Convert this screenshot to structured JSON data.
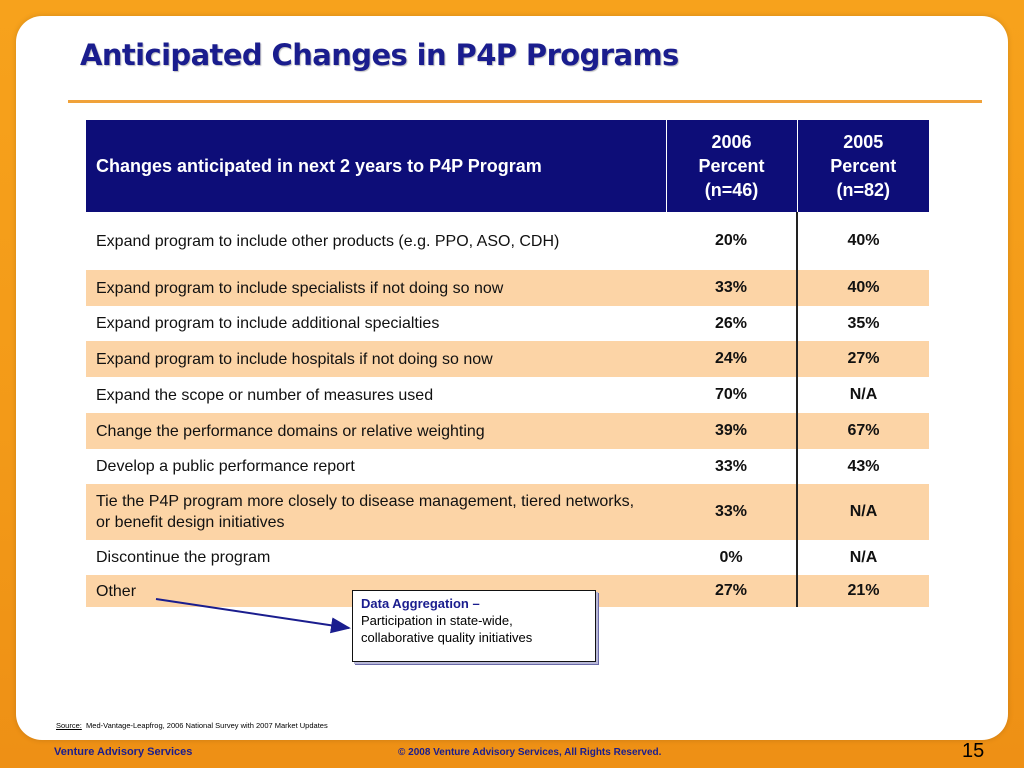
{
  "slide": {
    "title": "Anticipated Changes in P4P Programs",
    "page_number": "15"
  },
  "table": {
    "headers": {
      "col1": "Changes anticipated in next 2 years to P4P Program",
      "col2": [
        "2006",
        "Percent",
        "(n=46)"
      ],
      "col3": [
        "2005",
        "Percent",
        "(n=82)"
      ]
    },
    "rows": [
      {
        "label": "Expand program to include other products (e.g. PPO, ASO, CDH)",
        "v2006": "20%",
        "v2005": "40%"
      },
      {
        "label": "Expand program to include specialists if not doing so now",
        "v2006": "33%",
        "v2005": "40%"
      },
      {
        "label": "Expand program to include additional specialties",
        "v2006": "26%",
        "v2005": "35%"
      },
      {
        "label": "Expand program to include hospitals if not doing so now",
        "v2006": "24%",
        "v2005": "27%"
      },
      {
        "label": "Expand the scope or number of measures used",
        "v2006": "70%",
        "v2005": "N/A"
      },
      {
        "label": "Change the performance domains or relative weighting",
        "v2006": "39%",
        "v2005": "67%"
      },
      {
        "label": "Develop a public performance report",
        "v2006": "33%",
        "v2005": "43%"
      },
      {
        "label": "Tie the P4P program more closely to disease management, tiered networks, or benefit design initiatives",
        "v2006": "33%",
        "v2005": "N/A"
      },
      {
        "label": "Discontinue the program",
        "v2006": "0%",
        "v2005": "N/A"
      },
      {
        "label": "Other",
        "v2006": "27%",
        "v2005": "21%"
      }
    ]
  },
  "callout": {
    "title": "Data Aggregation –",
    "body": "Participation in state-wide, collaborative quality initiatives"
  },
  "source": {
    "label": "Source:",
    "text": "Med-Vantage-Leapfrog, 2006 National Survey with 2007 Market Updates"
  },
  "footer": {
    "left": "Venture Advisory Services",
    "center": "© 2008 Venture Advisory Services, All Rights Reserved."
  },
  "colors": {
    "background_orange": "#f39a18",
    "header_navy": "#0d0d78",
    "title_blue": "#1a1d8e",
    "stripe_peach": "#fcd4a6",
    "rule_orange": "#f0a23a"
  }
}
